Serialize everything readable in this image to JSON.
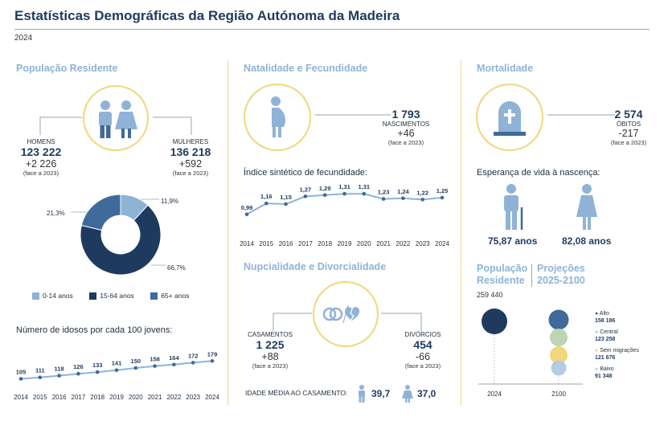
{
  "title": "Estatísticas Demográficas da Região Autónoma da Madeira",
  "year": "2024",
  "colors": {
    "dark": "#1f3a5f",
    "mid": "#3f6a9a",
    "light": "#8fb3d6",
    "yellow": "#f2d67a",
    "green": "#bcd5b3",
    "pale_blue": "#b4cbe3"
  },
  "populacao": {
    "heading": "População Residente",
    "homens_label": "HOMENS",
    "homens_value": "123 222",
    "homens_delta": "+2 226",
    "homens_note": "(face a 2023)",
    "mulheres_label": "MULHERES",
    "mulheres_value": "136 218",
    "mulheres_delta": "+592",
    "mulheres_note": "(face a 2023)",
    "icon": "man-woman-icon"
  },
  "natalidade": {
    "heading": "Natalidade e Fecundidade",
    "nascimentos_value": "1 793",
    "nascimentos_label": "NASCIMENTOS",
    "nascimentos_delta": "+46",
    "nascimentos_note": "(face a 2023)",
    "isf_label": "Índice sintético de fecundidade:",
    "icon": "pregnant-woman-icon"
  },
  "mortalidade": {
    "heading": "Mortalidade",
    "obitos_value": "2 574",
    "obitos_label": "ÓBITOS",
    "obitos_delta": "-217",
    "obitos_note": "(face a 2023)",
    "esperanca_label": "Esperança de vida à nascença:",
    "homens_ev": "75,87 anos",
    "mulheres_ev": "82,08 anos",
    "icon": "tombstone-icon"
  },
  "nupcialidade": {
    "heading": "Nupcialidade e Divorcialidade",
    "casamentos_label": "CASAMENTOS",
    "casamentos_value": "1 225",
    "casamentos_delta": "+88",
    "casamentos_note": "(face a 2023)",
    "divorcios_label": "DIVÓRCIOS",
    "divorcios_value": "454",
    "divorcios_delta": "-66",
    "divorcios_note": "(face a 2023)",
    "idade_label": "IDADE MÉDIA AO CASAMENTO:",
    "idade_homem": "39,7",
    "idade_mulher": "37,0",
    "icon": "rings-broken-heart-icon"
  },
  "projecoes": {
    "heading_a1": "População",
    "heading_a2": "Residente",
    "heading_b1": "Projeções",
    "heading_b2": "2025-2100",
    "base_value": "259 440",
    "year_start": "2024",
    "year_end": "2100"
  },
  "chart_data": [
    {
      "type": "pie",
      "categories": [
        "0-14 anos",
        "15-64 anos",
        "65+ anos"
      ],
      "values": [
        11.9,
        66.7,
        21.3
      ],
      "labels": [
        "11,9%",
        "66,7%",
        "21,3%"
      ],
      "colors": [
        "#8fb3d6",
        "#1f3a5f",
        "#3f6a9a"
      ],
      "legend": "bottom"
    },
    {
      "type": "line",
      "title": "Índice sintético de fecundidade:",
      "x": [
        "2014",
        "2015",
        "2016",
        "2017",
        "2018",
        "2019",
        "2020",
        "2021",
        "2022",
        "2023",
        "2024"
      ],
      "values": [
        0.99,
        1.16,
        1.15,
        1.27,
        1.29,
        1.31,
        1.31,
        1.23,
        1.24,
        1.22,
        1.25
      ],
      "labels": [
        "0,99",
        "1,16",
        "1,15",
        "1,27",
        "1,29",
        "1,31",
        "1,31",
        "1,23",
        "1,24",
        "1,22",
        "1,25"
      ],
      "color": "#8fb3d6"
    },
    {
      "type": "line",
      "title": "Número de idosos por cada 100 jovens:",
      "x": [
        "2014",
        "2015",
        "2016",
        "2017",
        "2018",
        "2019",
        "2020",
        "2021",
        "2022",
        "2023",
        "2024"
      ],
      "values": [
        105,
        111,
        118,
        126,
        133,
        141,
        150,
        158,
        164,
        172,
        179
      ],
      "labels": [
        "105",
        "111",
        "118",
        "126",
        "133",
        "141",
        "150",
        "158",
        "164",
        "172",
        "179"
      ],
      "color": "#8fb3d6"
    },
    {
      "type": "scatter",
      "title": "Projeções 2025-2100",
      "x": [
        "2024",
        "2100"
      ],
      "series": [
        {
          "name": "Alto",
          "value": 158186,
          "value_label": "158 186",
          "color": "#3f6a9a"
        },
        {
          "name": "Central",
          "value": 123258,
          "value_label": "123 258",
          "color": "#bcd5b3"
        },
        {
          "name": "Sem migrações",
          "value": 121676,
          "value_label": "121 676",
          "color": "#f2d67a"
        },
        {
          "name": "Baixo",
          "value": 91348,
          "value_label": "91 348",
          "color": "#b4cbe3"
        }
      ],
      "base": {
        "year": "2024",
        "value": 259440,
        "value_label": "259 440",
        "color": "#1f3a5f"
      }
    }
  ]
}
